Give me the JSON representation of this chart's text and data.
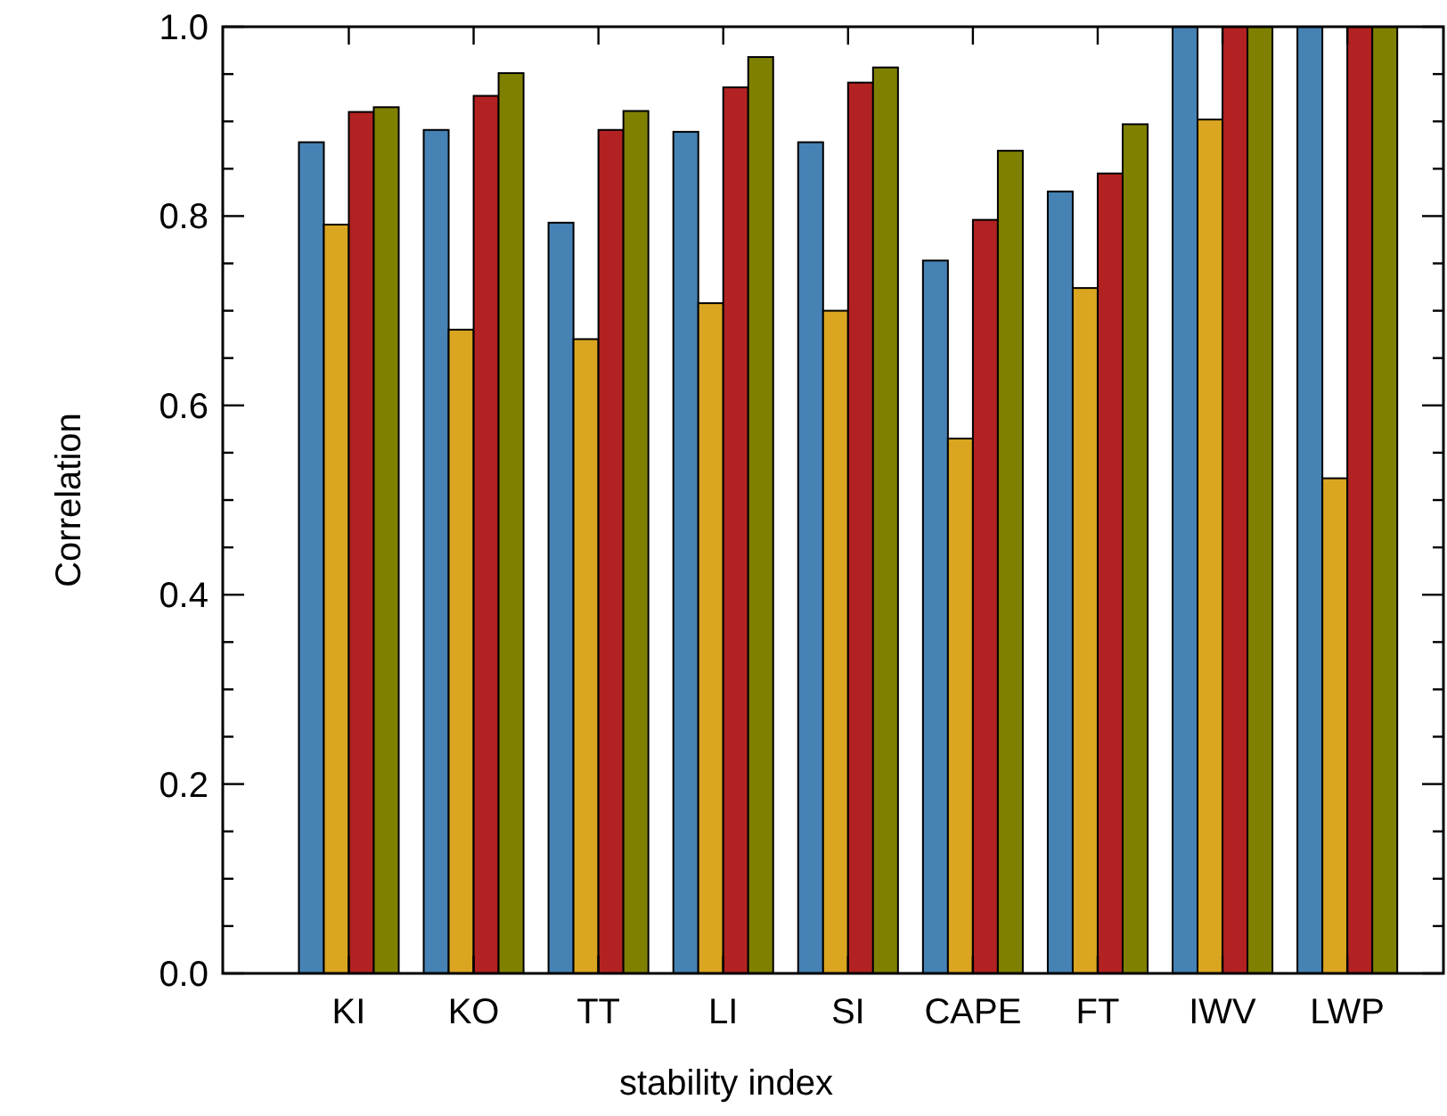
{
  "chart_data": {
    "type": "bar",
    "xlabel": "stability index",
    "ylabel": "Correlation",
    "categories": [
      "KI",
      "KO",
      "TT",
      "LI",
      "SI",
      "CAPE",
      "FT",
      "IWV",
      "LWP"
    ],
    "series": [
      {
        "color": "#4682b4",
        "values": [
          0.878,
          0.891,
          0.793,
          0.889,
          0.878,
          0.753,
          0.826,
          1.0,
          1.0
        ]
      },
      {
        "color": "#daa520",
        "values": [
          0.791,
          0.68,
          0.67,
          0.708,
          0.7,
          0.565,
          0.724,
          0.902,
          0.523
        ]
      },
      {
        "color": "#b22222",
        "values": [
          0.91,
          0.927,
          0.891,
          0.936,
          0.941,
          0.796,
          0.845,
          1.0,
          1.0
        ]
      },
      {
        "color": "#808000",
        "values": [
          0.915,
          0.951,
          0.911,
          0.968,
          0.957,
          0.869,
          0.897,
          1.0,
          1.0
        ]
      }
    ],
    "ylim": [
      0,
      1
    ],
    "yticks": [
      {
        "value": 0,
        "label": "0.0"
      },
      {
        "value": 0.05,
        "label": null
      },
      {
        "value": 0.1,
        "label": null
      },
      {
        "value": 0.15,
        "label": null
      },
      {
        "value": 0.2,
        "label": "0.2"
      },
      {
        "value": 0.25,
        "label": null
      },
      {
        "value": 0.3,
        "label": null
      },
      {
        "value": 0.35,
        "label": null
      },
      {
        "value": 0.4,
        "label": "0.4"
      },
      {
        "value": 0.45,
        "label": null
      },
      {
        "value": 0.5,
        "label": null
      },
      {
        "value": 0.55,
        "label": null
      },
      {
        "value": 0.6,
        "label": "0.6"
      },
      {
        "value": 0.65,
        "label": null
      },
      {
        "value": 0.7,
        "label": null
      },
      {
        "value": 0.75,
        "label": null
      },
      {
        "value": 0.8,
        "label": "0.8"
      },
      {
        "value": 0.85,
        "label": null
      },
      {
        "value": 0.9,
        "label": null
      },
      {
        "value": 0.95,
        "label": null
      },
      {
        "value": 1,
        "label": "1.0"
      }
    ],
    "grid": false
  }
}
